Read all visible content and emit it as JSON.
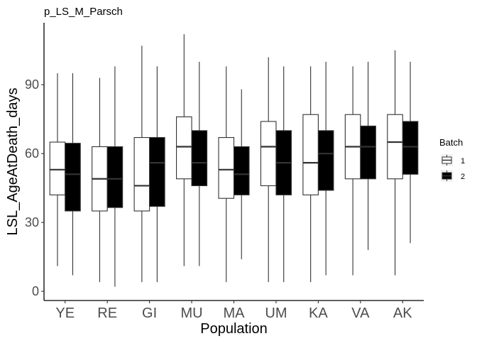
{
  "chart_data": {
    "type": "boxplot",
    "title": "p_LS_M_Parsch",
    "xlabel": "Population",
    "ylabel": "LSL_AgeAtDeath_days",
    "ylim": [
      -4,
      117
    ],
    "yticks": [
      0,
      30,
      60,
      90
    ],
    "categories": [
      "YE",
      "RE",
      "GI",
      "MU",
      "MA",
      "UM",
      "KA",
      "VA",
      "AK"
    ],
    "legend": {
      "title": "Batch",
      "position": "right",
      "entries": [
        {
          "label": "1",
          "fill": "#ffffff"
        },
        {
          "label": "2",
          "fill": "#000000"
        }
      ]
    },
    "series": [
      {
        "name": "1",
        "fill": "#ffffff",
        "stroke": "#333333",
        "median_color": "#333333",
        "boxes": [
          {
            "min": 11,
            "q1": 42,
            "median": 53,
            "q3": 65,
            "max": 95
          },
          {
            "min": 4,
            "q1": 35,
            "median": 49,
            "q3": 63,
            "max": 93
          },
          {
            "min": 4,
            "q1": 35,
            "median": 46,
            "q3": 67,
            "max": 107
          },
          {
            "min": 11,
            "q1": 49,
            "median": 63,
            "q3": 76,
            "max": 112
          },
          {
            "min": 4,
            "q1": 40.5,
            "median": 53,
            "q3": 67,
            "max": 98
          },
          {
            "min": 4,
            "q1": 46,
            "median": 63,
            "q3": 74,
            "max": 102
          },
          {
            "min": 4,
            "q1": 42,
            "median": 56,
            "q3": 77,
            "max": 98
          },
          {
            "min": 7,
            "q1": 49,
            "median": 63,
            "q3": 77,
            "max": 98
          },
          {
            "min": 7,
            "q1": 49,
            "median": 65,
            "q3": 77,
            "max": 105
          }
        ]
      },
      {
        "name": "2",
        "fill": "#000000",
        "stroke": "#333333",
        "median_color": "#333333",
        "boxes": [
          {
            "min": 7,
            "q1": 35,
            "median": 51,
            "q3": 64.5,
            "max": 95
          },
          {
            "min": 2,
            "q1": 36.5,
            "median": 49,
            "q3": 63,
            "max": 98
          },
          {
            "min": 4,
            "q1": 37,
            "median": 56,
            "q3": 67,
            "max": 98
          },
          {
            "min": 11,
            "q1": 46,
            "median": 56,
            "q3": 70,
            "max": 100
          },
          {
            "min": 14,
            "q1": 42,
            "median": 51,
            "q3": 63,
            "max": 88
          },
          {
            "min": 4,
            "q1": 42,
            "median": 56,
            "q3": 70,
            "max": 98
          },
          {
            "min": 7,
            "q1": 44,
            "median": 60,
            "q3": 70,
            "max": 100
          },
          {
            "min": 18,
            "q1": 49,
            "median": 63,
            "q3": 72,
            "max": 100
          },
          {
            "min": 21,
            "q1": 51,
            "median": 63,
            "q3": 74,
            "max": 100
          }
        ]
      }
    ]
  }
}
